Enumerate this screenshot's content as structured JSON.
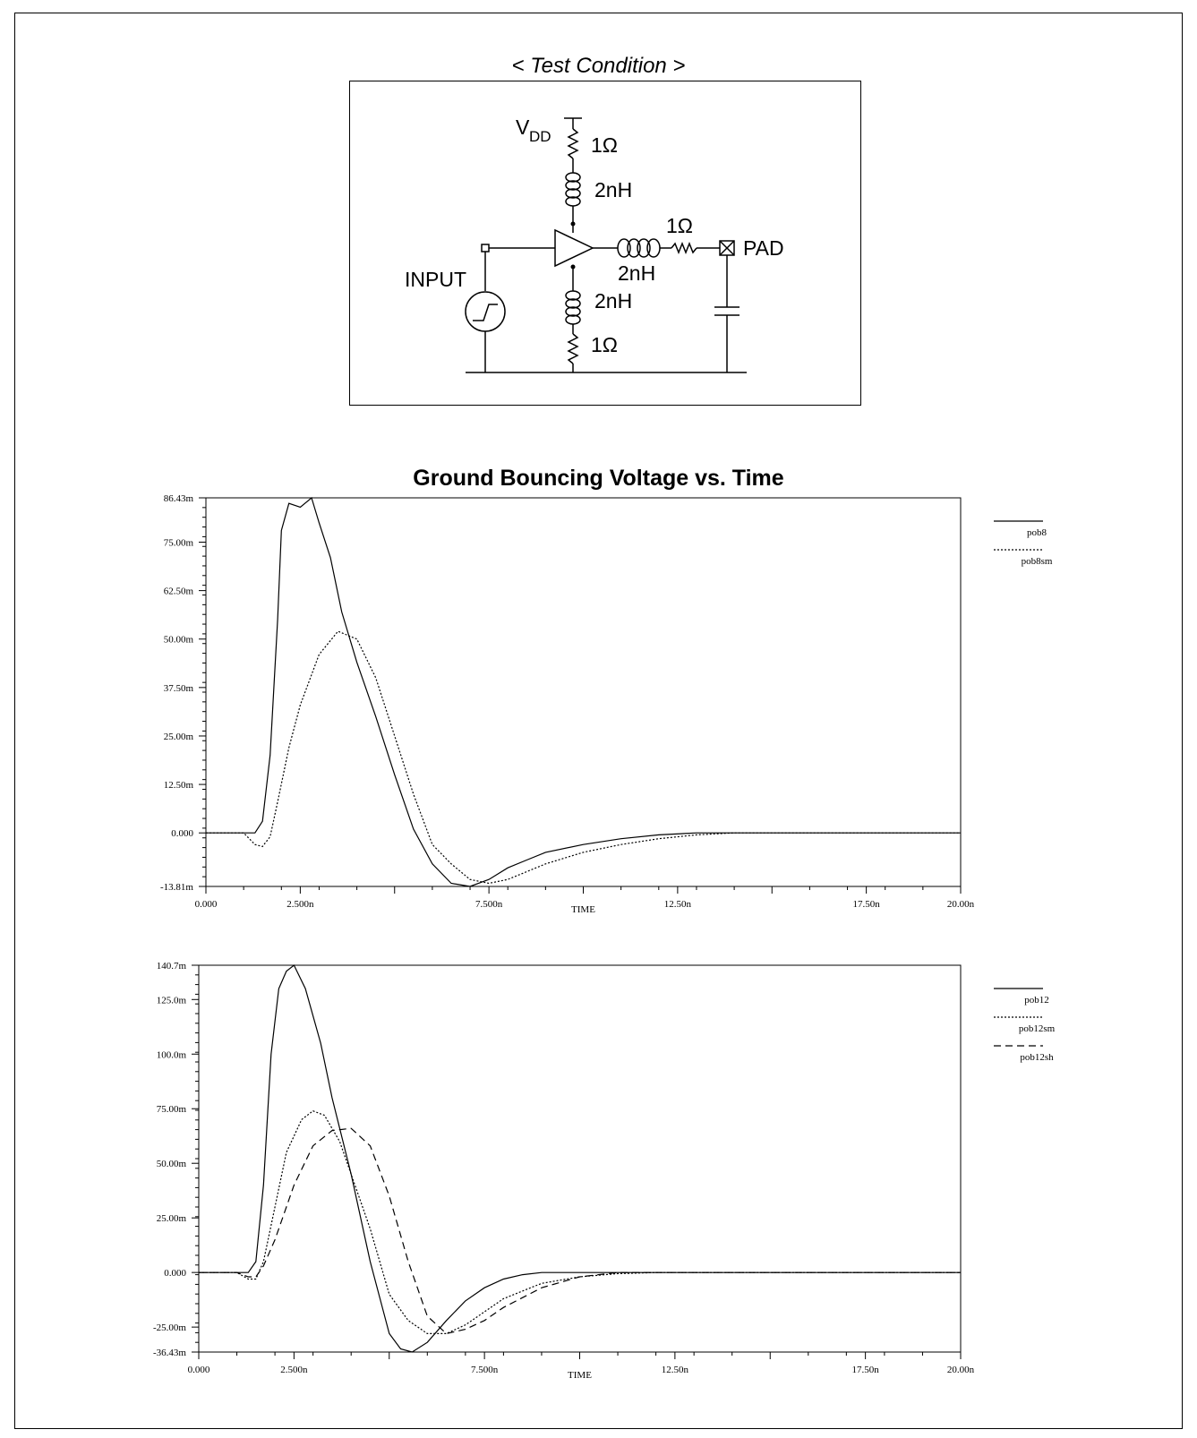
{
  "test_condition": {
    "caption": "< Test Condition >",
    "labels": {
      "vdd_main": "V",
      "vdd_sub": "DD",
      "r_top": "1Ω",
      "l_top": "2nH",
      "l_out": "2nH",
      "r_out": "1Ω",
      "pad": "PAD",
      "input": "INPUT",
      "l_bottom": "2nH",
      "r_bottom": "1Ω"
    }
  },
  "chart_data": [
    {
      "type": "line",
      "title": "Ground Bouncing Voltage vs. Time",
      "xlabel": "TIME",
      "ylabel": "",
      "xlim": [
        0,
        20
      ],
      "ylim": [
        -13.81,
        86.43
      ],
      "x_unit": "n",
      "y_unit": "m",
      "x_ticks": [
        "0.000",
        "2.500n",
        "7.500n",
        "12.50n",
        "17.50n",
        "20.00n"
      ],
      "y_ticks": [
        "86.43m",
        "75.00m",
        "62.50m",
        "50.00m",
        "37.50m",
        "25.00m",
        "12.50m",
        "0.000",
        "-13.81m"
      ],
      "x_tick_values": [
        0,
        2.5,
        7.5,
        12.5,
        17.5,
        20
      ],
      "y_tick_values": [
        86.43,
        75,
        62.5,
        50,
        37.5,
        25,
        12.5,
        0,
        -13.81
      ],
      "legend_position": "right",
      "series": [
        {
          "name": "pob8",
          "style": "solid",
          "x": [
            0,
            1.0,
            1.3,
            1.5,
            1.7,
            1.9,
            2.0,
            2.2,
            2.5,
            2.8,
            3.0,
            3.3,
            3.6,
            4.0,
            4.5,
            5.0,
            5.5,
            6.0,
            6.5,
            7.0,
            7.5,
            8.0,
            8.5,
            9.0,
            10.0,
            11.0,
            12.0,
            13.0,
            14.0,
            15.0,
            20.0
          ],
          "y": [
            0,
            0,
            0,
            3,
            20,
            55,
            78,
            85,
            84,
            86.43,
            80,
            71,
            57,
            44,
            30,
            15,
            1,
            -8,
            -13,
            -13.81,
            -12,
            -9,
            -7,
            -5,
            -3,
            -1.5,
            -0.5,
            0,
            0,
            0,
            0
          ]
        },
        {
          "name": "pob8sm",
          "style": "dotted",
          "x": [
            0,
            1.0,
            1.3,
            1.5,
            1.7,
            1.9,
            2.2,
            2.5,
            3.0,
            3.5,
            4.0,
            4.5,
            5.0,
            5.5,
            6.0,
            6.5,
            7.0,
            7.5,
            8.0,
            8.5,
            9.0,
            10.0,
            11.0,
            12.0,
            13.0,
            14.0,
            15.0,
            20.0
          ],
          "y": [
            0,
            0,
            -3,
            -3.5,
            -1,
            8,
            22,
            33,
            46,
            52,
            50,
            40,
            25,
            10,
            -3,
            -8,
            -12,
            -13,
            -12,
            -10,
            -8,
            -5,
            -3,
            -1.5,
            -0.5,
            0,
            0,
            0
          ]
        }
      ]
    },
    {
      "type": "line",
      "title": "",
      "xlabel": "TIME",
      "ylabel": "",
      "xlim": [
        0,
        20
      ],
      "ylim": [
        -36.43,
        140.7
      ],
      "x_unit": "n",
      "y_unit": "m",
      "x_ticks": [
        "0.000",
        "2.500n",
        "7.500n",
        "12.50n",
        "17.50n",
        "20.00n"
      ],
      "y_ticks": [
        "140.7m",
        "125.0m",
        "100.0m",
        "75.00m",
        "50.00m",
        "25.00m",
        "0.000",
        "-25.00m",
        "-36.43m"
      ],
      "x_tick_values": [
        0,
        2.5,
        7.5,
        12.5,
        17.5,
        20
      ],
      "y_tick_values": [
        140.7,
        125,
        100,
        75,
        50,
        25,
        0,
        -25,
        -36.43
      ],
      "legend_position": "right",
      "series": [
        {
          "name": "pob12",
          "style": "solid",
          "x": [
            0,
            1.0,
            1.3,
            1.5,
            1.7,
            1.9,
            2.1,
            2.3,
            2.5,
            2.8,
            3.2,
            3.5,
            4.0,
            4.5,
            5.0,
            5.3,
            5.6,
            6.0,
            6.5,
            7.0,
            7.5,
            8.0,
            8.5,
            9.0,
            10.0,
            20.0
          ],
          "y": [
            0,
            0,
            0,
            5,
            40,
            100,
            130,
            138,
            140.7,
            130,
            105,
            80,
            45,
            5,
            -28,
            -35,
            -36.43,
            -32,
            -22,
            -13,
            -7,
            -3,
            -1,
            0,
            0,
            0
          ]
        },
        {
          "name": "pob12sm",
          "style": "dotted",
          "x": [
            0,
            1.0,
            1.3,
            1.5,
            1.7,
            2.0,
            2.3,
            2.7,
            3.0,
            3.3,
            3.7,
            4.0,
            4.5,
            5.0,
            5.5,
            6.0,
            6.5,
            7.0,
            7.5,
            8.0,
            9.0,
            10.0,
            11.0,
            12.0,
            20.0
          ],
          "y": [
            0,
            0,
            -3,
            -3,
            5,
            30,
            55,
            70,
            74,
            72,
            60,
            45,
            20,
            -10,
            -22,
            -28,
            -28,
            -24,
            -18,
            -12,
            -5,
            -2,
            -0.5,
            0,
            0
          ]
        },
        {
          "name": "pob12sh",
          "style": "dashed",
          "x": [
            0,
            1.0,
            1.3,
            1.5,
            1.7,
            2.0,
            2.5,
            3.0,
            3.5,
            4.0,
            4.5,
            5.0,
            5.5,
            6.0,
            6.5,
            7.0,
            7.5,
            8.0,
            9.0,
            10.0,
            11.0,
            12.0,
            20.0
          ],
          "y": [
            0,
            0,
            -2,
            -2,
            3,
            15,
            40,
            58,
            65,
            66,
            58,
            35,
            5,
            -20,
            -28,
            -26,
            -22,
            -16,
            -7,
            -2,
            0,
            0,
            0
          ]
        }
      ]
    }
  ]
}
